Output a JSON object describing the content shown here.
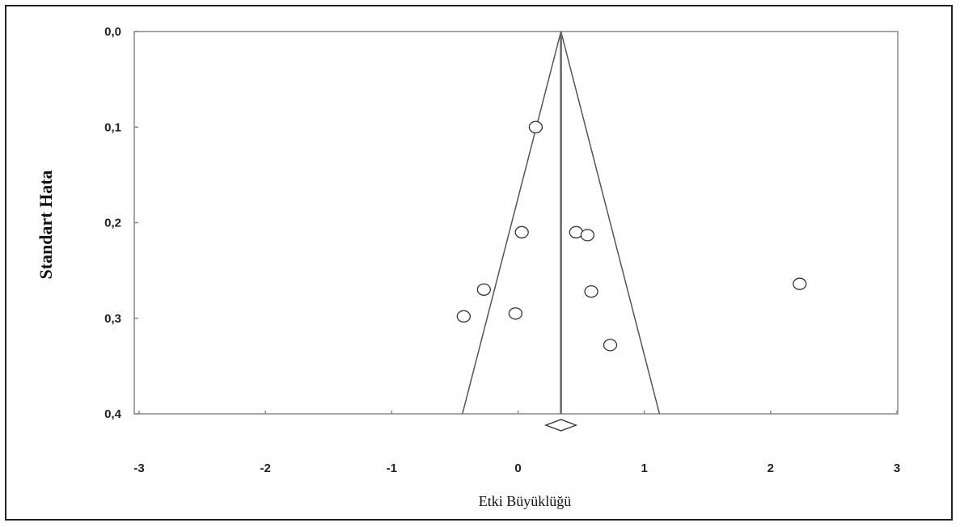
{
  "chart_data": {
    "type": "scatter",
    "title": "",
    "xlabel": "Etki Büyüklüğü",
    "ylabel": "Standart Hata",
    "xlim": [
      -3,
      3
    ],
    "ylim": [
      0.0,
      0.4
    ],
    "y_inverted": true,
    "x_ticks": [
      "-3",
      "-2",
      "-1",
      "0",
      "1",
      "2",
      "3"
    ],
    "x_tick_values": [
      -3,
      -2,
      -1,
      0,
      1,
      2,
      3
    ],
    "y_ticks": [
      "0,0",
      "0,1",
      "0,2",
      "0,3",
      "0,4"
    ],
    "y_tick_values": [
      0.0,
      0.1,
      0.2,
      0.3,
      0.4
    ],
    "pooled_effect": 0.34,
    "funnel": {
      "apex": [
        0.34,
        0.0
      ],
      "base_left": [
        -0.44,
        0.4
      ],
      "base_right": [
        1.12,
        0.4
      ]
    },
    "summary_diamond": {
      "center": 0.34,
      "low": 0.22,
      "high": 0.46
    },
    "points": [
      {
        "x": 0.14,
        "y": 0.1
      },
      {
        "x": 0.03,
        "y": 0.21
      },
      {
        "x": 0.46,
        "y": 0.21
      },
      {
        "x": 0.55,
        "y": 0.213
      },
      {
        "x": -0.27,
        "y": 0.27
      },
      {
        "x": 0.58,
        "y": 0.272
      },
      {
        "x": 2.23,
        "y": 0.264
      },
      {
        "x": -0.43,
        "y": 0.298
      },
      {
        "x": -0.02,
        "y": 0.295
      },
      {
        "x": 0.73,
        "y": 0.328
      }
    ],
    "grid": false,
    "legend": "none",
    "colors": {
      "axis": "#888888",
      "marker": "#333333",
      "funnel": "#555555"
    }
  }
}
